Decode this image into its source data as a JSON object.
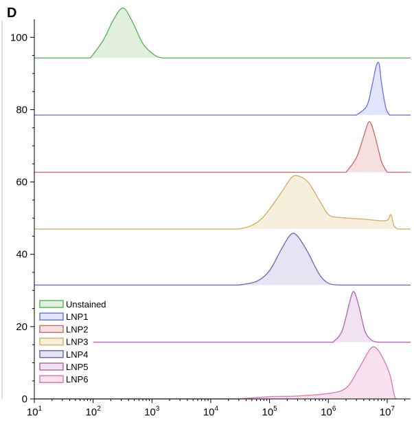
{
  "panel_label": "D",
  "chart_data": {
    "type": "area",
    "subtype": "overlaid flow-cytometry histograms (offset)",
    "title": "",
    "xlabel": "",
    "ylabel": "",
    "x_scale": "log",
    "xlim": [
      10,
      25000000
    ],
    "ylim": [
      0,
      105
    ],
    "x_ticks": [
      {
        "value": 10,
        "base": "10",
        "exp": "1"
      },
      {
        "value": 100,
        "base": "10",
        "exp": "2"
      },
      {
        "value": 1000,
        "base": "10",
        "exp": "3"
      },
      {
        "value": 10000,
        "base": "10",
        "exp": "4"
      },
      {
        "value": 100000,
        "base": "10",
        "exp": "5"
      },
      {
        "value": 1000000,
        "base": "10",
        "exp": "6"
      },
      {
        "value": 10000000,
        "base": "10",
        "exp": "7"
      }
    ],
    "y_ticks": [
      0,
      20,
      40,
      60,
      80,
      100
    ],
    "grid": false,
    "legend_position": "bottom-left",
    "series": [
      {
        "name": "Unstained",
        "color": "#5cb85c",
        "fill": "#e2f1de",
        "baseline": 94.3,
        "x_range": [
          10,
          25000000
        ],
        "points": [
          [
            90,
            0
          ],
          [
            150,
            5
          ],
          [
            220,
            10.5
          ],
          [
            320,
            13.8
          ],
          [
            450,
            10.5
          ],
          [
            700,
            4
          ],
          [
            1100,
            0.8
          ],
          [
            1500,
            0
          ]
        ]
      },
      {
        "name": "LNP1",
        "color": "#6a78e8",
        "fill": "#e2e5fb",
        "baseline": 78.5,
        "x_range": [
          10,
          25000000
        ],
        "points": [
          [
            3000000,
            0
          ],
          [
            4500000,
            2.5
          ],
          [
            5500000,
            8
          ],
          [
            6500000,
            13.5
          ],
          [
            7300000,
            14.2
          ],
          [
            8000000,
            9
          ],
          [
            9500000,
            2
          ],
          [
            11000000,
            0
          ]
        ]
      },
      {
        "name": "LNP2",
        "color": "#c87070",
        "fill": "#f5e0e0",
        "baseline": 62.7,
        "x_range": [
          10,
          25000000
        ],
        "points": [
          [
            2000000,
            0
          ],
          [
            3000000,
            4
          ],
          [
            4000000,
            10
          ],
          [
            5000000,
            14
          ],
          [
            6200000,
            10
          ],
          [
            8000000,
            3
          ],
          [
            10000000,
            0
          ]
        ]
      },
      {
        "name": "LNP3",
        "color": "#d4b06a",
        "fill": "#f6efdc",
        "baseline": 47,
        "x_range": [
          10,
          25000000
        ],
        "points": [
          [
            30000,
            0
          ],
          [
            50000,
            1
          ],
          [
            80000,
            3.5
          ],
          [
            150000,
            9.5
          ],
          [
            230000,
            14
          ],
          [
            300000,
            14.7
          ],
          [
            450000,
            13
          ],
          [
            700000,
            8
          ],
          [
            1000000,
            4
          ],
          [
            1500000,
            3.2
          ],
          [
            4000000,
            2.7
          ],
          [
            9500000,
            2.3
          ],
          [
            11500000,
            4
          ],
          [
            13000000,
            1
          ],
          [
            15000000,
            0
          ]
        ]
      },
      {
        "name": "LNP4",
        "color": "#6e6eb8",
        "fill": "#e4e4f3",
        "baseline": 31.5,
        "x_range": [
          10,
          25000000
        ],
        "points": [
          [
            30000,
            0
          ],
          [
            60000,
            1
          ],
          [
            100000,
            4
          ],
          [
            160000,
            10
          ],
          [
            230000,
            14
          ],
          [
            300000,
            13.5
          ],
          [
            450000,
            9
          ],
          [
            700000,
            3
          ],
          [
            1000000,
            0.5
          ],
          [
            1500000,
            0
          ]
        ]
      },
      {
        "name": "LNP5",
        "color": "#b56ab5",
        "fill": "#f1e2f1",
        "baseline": 15.7,
        "x_range": [
          100,
          25000000
        ],
        "points": [
          [
            1200000,
            0
          ],
          [
            1700000,
            3
          ],
          [
            2300000,
            11
          ],
          [
            2700000,
            14
          ],
          [
            3300000,
            10
          ],
          [
            4200000,
            3
          ],
          [
            5500000,
            0.5
          ],
          [
            7000000,
            0
          ]
        ]
      },
      {
        "name": "LNP6",
        "color": "#e07ab5",
        "fill": "#fae1ef",
        "baseline": 0,
        "x_range": [
          10,
          14000000
        ],
        "points": [
          [
            30000,
            0
          ],
          [
            100000,
            0.6
          ],
          [
            300000,
            0.8
          ],
          [
            1000000,
            1.5
          ],
          [
            2000000,
            3
          ],
          [
            3200000,
            8
          ],
          [
            5000000,
            13.5
          ],
          [
            6200000,
            14.3
          ],
          [
            8000000,
            12
          ],
          [
            11000000,
            7
          ],
          [
            13000000,
            1.5
          ],
          [
            14000000,
            0
          ]
        ]
      }
    ]
  }
}
